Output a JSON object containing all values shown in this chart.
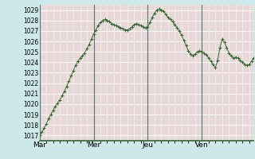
{
  "bg_outer": "#cce8e8",
  "bg_plot": "#e8d8d8",
  "grid_color": "#ffffff",
  "line_color": "#2d6b2d",
  "marker_color": "#2d6b2d",
  "vline_color": "#4a7a7a",
  "spine_color": "#336633",
  "ylim": [
    1016.5,
    1029.5
  ],
  "yticks": [
    1017,
    1018,
    1019,
    1020,
    1021,
    1022,
    1023,
    1024,
    1025,
    1026,
    1027,
    1028,
    1029
  ],
  "xtick_labels": [
    "Mar",
    "Mer",
    "Jeu",
    "Ven"
  ],
  "xtick_positions": [
    0,
    24,
    48,
    72
  ],
  "vline_positions": [
    0,
    24,
    48,
    72
  ],
  "xlim": [
    0,
    95
  ],
  "pressure": [
    1017.0,
    1017.3,
    1017.7,
    1018.1,
    1018.6,
    1019.0,
    1019.4,
    1019.8,
    1020.1,
    1020.4,
    1020.8,
    1021.2,
    1021.7,
    1022.2,
    1022.7,
    1023.2,
    1023.7,
    1024.1,
    1024.4,
    1024.6,
    1024.9,
    1025.3,
    1025.7,
    1026.2,
    1026.7,
    1027.1,
    1027.5,
    1027.8,
    1028.0,
    1028.1,
    1028.0,
    1027.9,
    1027.7,
    1027.6,
    1027.5,
    1027.4,
    1027.3,
    1027.2,
    1027.1,
    1027.1,
    1027.2,
    1027.4,
    1027.6,
    1027.7,
    1027.6,
    1027.5,
    1027.4,
    1027.3,
    1027.4,
    1027.8,
    1028.3,
    1028.7,
    1029.0,
    1029.1,
    1029.0,
    1028.9,
    1028.6,
    1028.3,
    1028.1,
    1027.9,
    1027.6,
    1027.3,
    1027.0,
    1026.6,
    1026.1,
    1025.6,
    1025.1,
    1024.8,
    1024.6,
    1024.8,
    1025.0,
    1025.1,
    1025.0,
    1024.9,
    1024.7,
    1024.4,
    1024.1,
    1023.8,
    1023.5,
    1024.2,
    1025.4,
    1026.2,
    1025.9,
    1025.4,
    1024.9,
    1024.6,
    1024.4,
    1024.5,
    1024.4,
    1024.2,
    1024.0,
    1023.8,
    1023.7,
    1023.8,
    1024.1,
    1024.4
  ]
}
